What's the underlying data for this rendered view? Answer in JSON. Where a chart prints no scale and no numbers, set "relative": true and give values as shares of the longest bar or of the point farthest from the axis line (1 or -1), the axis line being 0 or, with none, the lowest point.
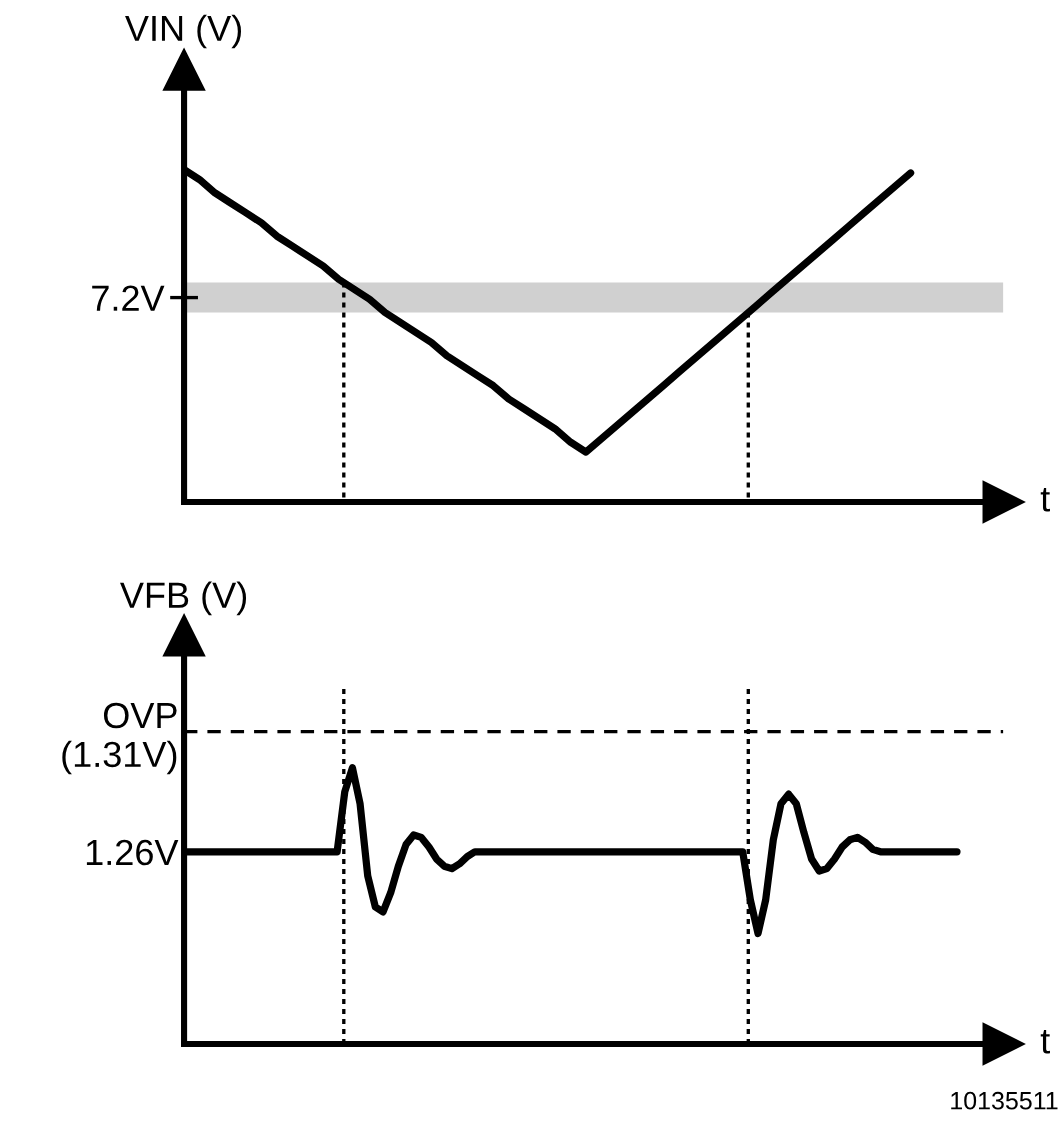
{
  "chart_data": [
    {
      "type": "line",
      "ylabel": "VIN (V)",
      "xlabel": "t",
      "relative": true,
      "tick_labels": "y",
      "grid": false,
      "legend": false,
      "marker": "none",
      "line_style": "solid",
      "categories": [
        null,
        null,
        null,
        null,
        null,
        null,
        null,
        null,
        null,
        null,
        null,
        null,
        null,
        null,
        null,
        null,
        null,
        null,
        null,
        null,
        null,
        null,
        null,
        null,
        null,
        null,
        null,
        null,
        null,
        null,
        null,
        null,
        null,
        null,
        null,
        null,
        null,
        null,
        null,
        null,
        null,
        null,
        null,
        null,
        null,
        null,
        null,
        null,
        null,
        null,
        null
      ],
      "series": [
        {
          "color": "#000000",
          "values": [
            1.0,
            0.97,
            0.93,
            0.9,
            0.87,
            0.84,
            0.8,
            0.77,
            0.74,
            0.71,
            0.67,
            0.64,
            0.61,
            0.57,
            0.54,
            0.51,
            0.48,
            0.44,
            0.41,
            0.38,
            0.35,
            0.31,
            0.28,
            0.25,
            0.22,
            0.18,
            0.15,
            0.19,
            0.23,
            0.27,
            0.31,
            0.35,
            0.39,
            0.43,
            0.47,
            0.51,
            0.55,
            0.59,
            0.63,
            0.67,
            0.71,
            0.75,
            0.79,
            0.83,
            0.87,
            0.91,
            0.95,
            0.99,
            null,
            null,
            null
          ]
        }
      ],
      "bands": [
        {
          "axis": "y",
          "from": 0.57,
          "to": 0.66,
          "label": "7.2V",
          "color": "#d0d0d0"
        }
      ]
    },
    {
      "type": "line",
      "ylabel": "VFB (V)",
      "xlabel": "t",
      "tick_labels": "y",
      "grid": false,
      "legend": false,
      "marker": "none",
      "line_style": "solid",
      "ylim": [
        1.18,
        1.35
      ],
      "yticks": [
        {
          "value": 1.26,
          "label": "1.26V"
        },
        {
          "value": 1.31,
          "label": "OVP\n(1.31V)"
        }
      ],
      "categories": [
        null,
        null,
        null,
        null,
        null,
        null,
        null,
        null,
        null,
        null,
        null,
        null,
        null,
        null,
        null,
        null,
        null,
        null,
        null,
        null,
        null,
        null,
        null,
        null,
        null,
        null,
        null,
        null,
        null,
        null,
        null,
        null,
        null,
        null,
        null,
        null,
        null,
        null,
        null,
        null,
        null,
        null,
        null,
        null,
        null,
        null,
        null,
        null,
        null,
        null,
        null,
        null,
        null,
        null,
        null,
        null,
        null,
        null,
        null,
        null,
        null,
        null,
        null,
        null,
        null,
        null,
        null,
        null,
        null,
        null,
        null,
        null,
        null,
        null,
        null,
        null,
        null,
        null,
        null,
        null,
        null,
        null,
        null,
        null,
        null,
        null,
        null,
        null,
        null,
        null,
        null,
        null,
        null,
        null,
        null,
        null,
        null,
        null,
        null,
        null,
        null,
        null
      ],
      "series": [
        {
          "color": "#000000",
          "values": [
            1.26,
            1.26,
            1.26,
            1.26,
            1.26,
            1.26,
            1.26,
            1.26,
            1.26,
            1.26,
            1.26,
            1.26,
            1.26,
            1.26,
            1.26,
            1.26,
            1.26,
            1.26,
            1.26,
            1.26,
            1.26,
            1.285,
            1.295,
            1.28,
            1.25,
            1.237,
            1.235,
            1.243,
            1.254,
            1.263,
            1.267,
            1.266,
            1.262,
            1.257,
            1.254,
            1.253,
            1.255,
            1.258,
            1.26,
            1.26,
            1.26,
            1.26,
            1.26,
            1.26,
            1.26,
            1.26,
            1.26,
            1.26,
            1.26,
            1.26,
            1.26,
            1.26,
            1.26,
            1.26,
            1.26,
            1.26,
            1.26,
            1.26,
            1.26,
            1.26,
            1.26,
            1.26,
            1.26,
            1.26,
            1.26,
            1.26,
            1.26,
            1.26,
            1.26,
            1.26,
            1.26,
            1.26,
            1.26,
            1.26,
            1.24,
            1.226,
            1.24,
            1.265,
            1.28,
            1.284,
            1.28,
            1.268,
            1.257,
            1.252,
            1.253,
            1.257,
            1.262,
            1.265,
            1.266,
            1.264,
            1.261,
            1.26,
            1.26,
            1.26,
            1.26,
            1.26,
            1.26,
            1.26,
            1.26,
            1.26,
            1.26,
            1.26
          ]
        }
      ],
      "ref_lines": [
        {
          "axis": "y",
          "value": 1.31,
          "line_style": "dashed",
          "color": "#000000"
        }
      ],
      "annotations": [
        "10135511"
      ]
    }
  ]
}
